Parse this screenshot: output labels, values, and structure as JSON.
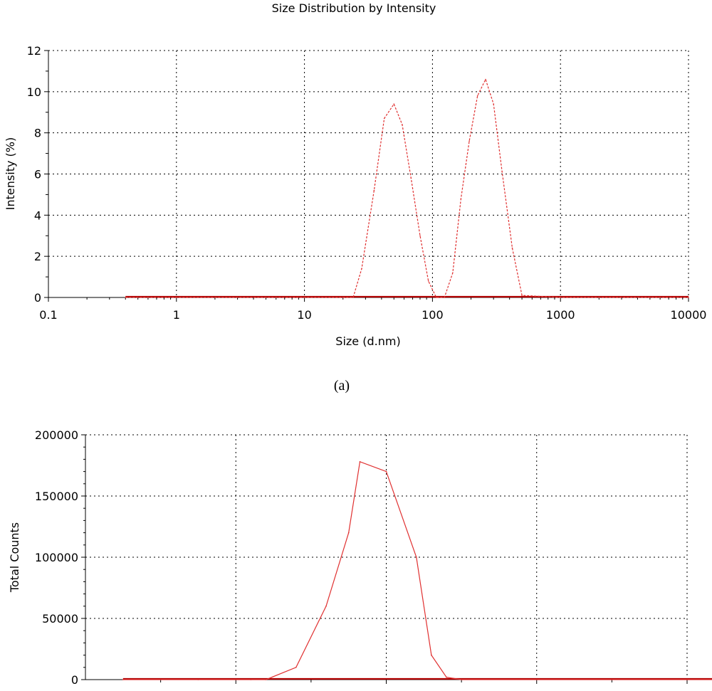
{
  "caption_a": "(a)",
  "chart_data": [
    {
      "type": "line",
      "title": "Size Distribution by Intensity",
      "xlabel": "Size (d.nm)",
      "ylabel": "Intensity (%)",
      "xscale": "log",
      "xlim": [
        0.1,
        10000
      ],
      "ylim": [
        0,
        12
      ],
      "xticks": [
        0.1,
        1,
        10,
        100,
        1000,
        10000
      ],
      "xtick_labels": [
        "0.1",
        "1",
        "10",
        "100",
        "1000",
        "10000"
      ],
      "yticks": [
        0,
        2,
        4,
        6,
        8,
        10,
        12
      ],
      "ytick_labels": [
        "0",
        "2",
        "4",
        "6",
        "8",
        "10",
        "12"
      ],
      "grid": true,
      "colors": {
        "series": "#e03030",
        "baseline": "#b00000",
        "grid": "#000000"
      },
      "series": [
        {
          "x": [
            0.4,
            1,
            5,
            10,
            20,
            24,
            28,
            35,
            42,
            50,
            58,
            68,
            80,
            93,
            107,
            124,
            144,
            167,
            194,
            225,
            260,
            300,
            350,
            420,
            500,
            1000,
            5000,
            10000
          ],
          "y": [
            0,
            0,
            0,
            0,
            0,
            0,
            1.4,
            5.2,
            8.7,
            9.4,
            8.4,
            5.8,
            3.0,
            0.8,
            0,
            0,
            1.2,
            4.8,
            7.6,
            9.8,
            10.6,
            9.4,
            6.1,
            2.4,
            0.1,
            0,
            0,
            0
          ]
        }
      ]
    },
    {
      "type": "line",
      "xlabel": "",
      "ylabel": "Total Counts",
      "ylim": [
        0,
        200000
      ],
      "yticks": [
        0,
        50000,
        100000,
        150000,
        200000
      ],
      "ytick_labels": [
        "0",
        "50000",
        "100000",
        "150000",
        "200000"
      ],
      "grid": true,
      "colors": {
        "series": "#e03030",
        "baseline": "#b00000",
        "grid": "#000000"
      },
      "series": [
        {
          "x": [
            0.5,
            1,
            1.5,
            2,
            2.2,
            2.4,
            2.8,
            3.2,
            3.5,
            3.65,
            4.0,
            4.4,
            4.6,
            4.8,
            5.0,
            6,
            7,
            8,
            8.5
          ],
          "y": [
            0,
            0,
            0,
            0,
            0,
            0,
            10000,
            60000,
            120000,
            178000,
            170000,
            100000,
            20000,
            2000,
            0,
            0,
            0,
            0,
            0
          ]
        }
      ]
    }
  ]
}
